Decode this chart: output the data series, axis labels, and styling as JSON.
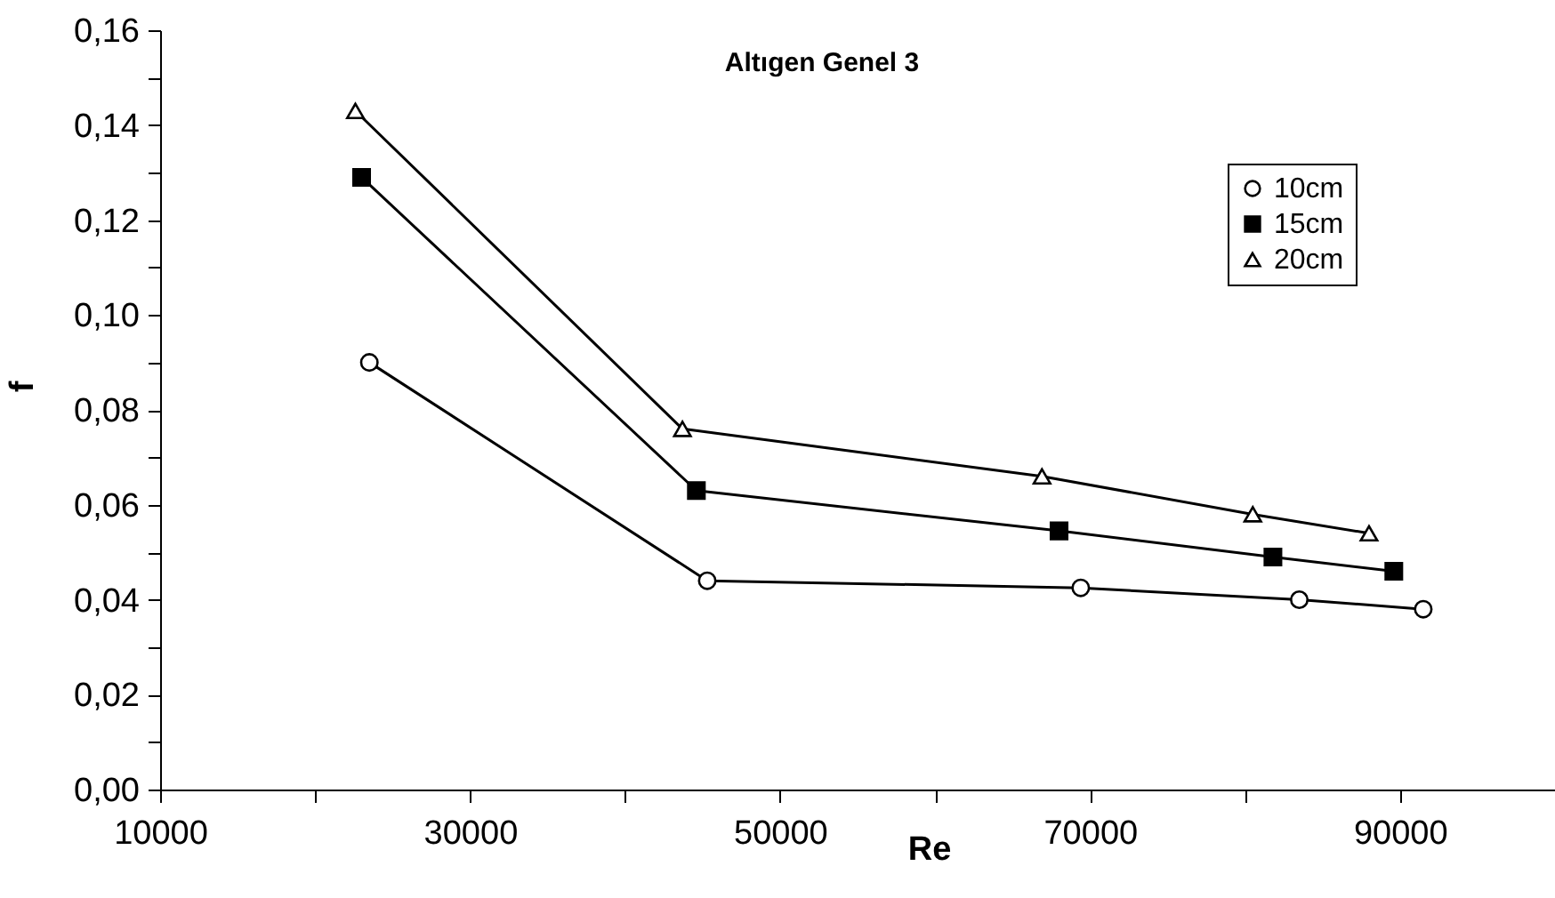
{
  "chart_data": {
    "type": "line",
    "title": "Altıgen Genel 3",
    "xlabel": "Re",
    "ylabel": "f",
    "xlim": [
      10000,
      100000
    ],
    "xticks": [
      10000,
      {
        "value": 20000,
        "label": null
      },
      30000,
      {
        "value": 40000,
        "label": null
      },
      50000,
      {
        "value": 60000,
        "label": null
      },
      70000,
      {
        "value": 80000,
        "label": null
      },
      90000,
      {
        "value": 100000,
        "label": null
      }
    ],
    "ylim": [
      0,
      0.16
    ],
    "yticks": [
      {
        "value": 0,
        "label": "0,00"
      },
      {
        "value": 0.01,
        "label": null
      },
      {
        "value": 0.02,
        "label": "0,02"
      },
      {
        "value": 0.03,
        "label": null
      },
      {
        "value": 0.04,
        "label": "0,04"
      },
      {
        "value": 0.05,
        "label": null
      },
      {
        "value": 0.06,
        "label": "0,06"
      },
      {
        "value": 0.07,
        "label": null
      },
      {
        "value": 0.08,
        "label": "0,08"
      },
      {
        "value": 0.09,
        "label": null
      },
      {
        "value": 0.1,
        "label": "0,10"
      },
      {
        "value": 0.11,
        "label": null
      },
      {
        "value": 0.12,
        "label": "0,12"
      },
      {
        "value": 0.13,
        "label": null
      },
      {
        "value": 0.14,
        "label": "0,14"
      },
      {
        "value": 0.15,
        "label": null
      },
      {
        "value": 0.16,
        "label": "0,16"
      }
    ],
    "grid": false,
    "legend": "top right",
    "line_style": "solid",
    "series": [
      {
        "name": "10cm",
        "color": "#000000",
        "marker": "circle",
        "colors": [
          "#ffffff",
          "#ffffff",
          "#ffffff",
          "#ffffff",
          "#ffffff"
        ],
        "x": [
          23500,
          45300,
          69400,
          83500,
          91500
        ],
        "values": [
          0.09,
          0.044,
          0.0425,
          0.04,
          0.038
        ]
      },
      {
        "name": "15cm",
        "color": "#000000",
        "marker": "square",
        "colors": [
          "#000000",
          "#000000",
          "#000000",
          "#000000",
          "#000000"
        ],
        "x": [
          23000,
          44600,
          68000,
          81800,
          89600
        ],
        "values": [
          0.129,
          0.063,
          0.0545,
          0.049,
          0.046
        ]
      },
      {
        "name": "20cm",
        "color": "#000000",
        "marker": "triangle",
        "colors": [
          "#ffffff",
          "#ffffff",
          "#ffffff",
          "#ffffff",
          "#ffffff"
        ],
        "x": [
          22600,
          43700,
          66900,
          80500,
          88000
        ],
        "values": [
          0.143,
          0.076,
          0.066,
          0.058,
          0.054
        ]
      }
    ]
  }
}
